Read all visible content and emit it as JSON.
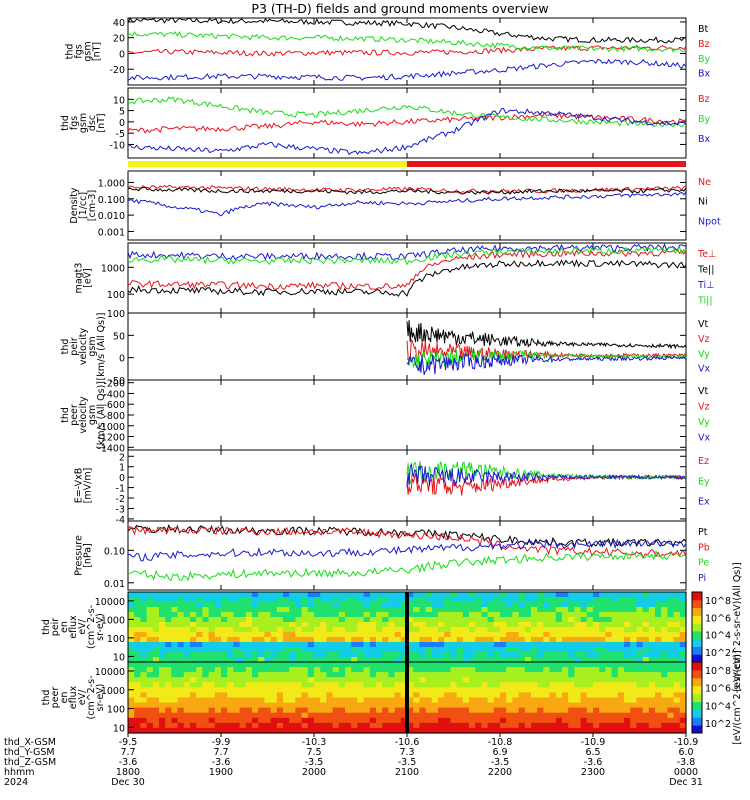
{
  "title": "P3 (TH-D) fields and ground moments overview",
  "colors": {
    "black": "#000000",
    "red": "#e8141c",
    "green": "#18dd18",
    "blue": "#1a1ad0"
  },
  "chart_data": [
    {
      "type": "line",
      "ylabel": [
        "thd",
        "fgs",
        "gsm",
        "[nT]"
      ],
      "yticks": [
        40,
        20,
        0,
        -20
      ],
      "ylim": [
        -40,
        45
      ],
      "x_hours": [
        18.0,
        18.5,
        19.0,
        19.5,
        20.0,
        20.5,
        21.0,
        21.5,
        22.0,
        22.5,
        23.0,
        23.5,
        24.0
      ],
      "legend": [
        "Bt",
        "Bz",
        "By",
        "Bx"
      ],
      "series": [
        {
          "name": "Bt",
          "color": "black",
          "values": [
            42,
            42,
            41,
            41,
            40,
            39,
            38,
            33,
            25,
            19,
            17,
            17,
            17
          ]
        },
        {
          "name": "Bz",
          "color": "red",
          "values": [
            1,
            2,
            1,
            0,
            1,
            1,
            1,
            2,
            4,
            6,
            7,
            7,
            8
          ]
        },
        {
          "name": "By",
          "color": "green",
          "values": [
            25,
            24,
            22,
            20,
            20,
            19,
            17,
            14,
            10,
            7,
            6,
            6,
            5
          ]
        },
        {
          "name": "Bx",
          "color": "blue",
          "values": [
            -31,
            -30,
            -29,
            -29,
            -30,
            -31,
            -29,
            -25,
            -21,
            -15,
            -10,
            -11,
            -16
          ]
        }
      ]
    },
    {
      "type": "line",
      "ylabel": [
        "thd",
        "fgs",
        "gsm",
        "dsc",
        "[nT]"
      ],
      "yticks": [
        10,
        5,
        0,
        -5,
        -10
      ],
      "ylim": [
        -16,
        15
      ],
      "legend": [
        "Bz",
        "By",
        "Bx"
      ],
      "series": [
        {
          "name": "Bz",
          "color": "red",
          "values": [
            -4,
            -3,
            -3,
            -2,
            0,
            -1,
            0,
            1,
            2,
            3,
            2,
            1,
            0
          ]
        },
        {
          "name": "By",
          "color": "green",
          "values": [
            9,
            10,
            7,
            4,
            3,
            5,
            7,
            4,
            2,
            1,
            0,
            -1,
            -1
          ]
        },
        {
          "name": "Bx",
          "color": "blue",
          "values": [
            -11,
            -12,
            -13,
            -10,
            -12,
            -14,
            -11,
            -4,
            5,
            4,
            2,
            0,
            -1
          ]
        }
      ]
    },
    {
      "type": "line",
      "log": true,
      "ylabel": [
        "Density",
        "[1/cc]",
        "[cm-3]"
      ],
      "yticks": [
        "1.000",
        "0.100",
        "0.010",
        "0.001"
      ],
      "ylim": [
        0.0003,
        5
      ],
      "legend": [
        "Ne",
        "Ni",
        "Npot"
      ],
      "series": [
        {
          "name": "Ne",
          "color": "red",
          "values": [
            0.5,
            0.5,
            0.45,
            0.4,
            0.35,
            0.35,
            0.4,
            0.3,
            0.3,
            0.3,
            0.35,
            0.4,
            0.45
          ]
        },
        {
          "name": "Ni",
          "color": "black",
          "values": [
            0.4,
            0.35,
            0.3,
            0.3,
            0.3,
            0.25,
            0.3,
            0.25,
            0.25,
            0.3,
            0.3,
            0.3,
            0.35
          ]
        },
        {
          "name": "Npot",
          "color": "blue",
          "values": [
            0.08,
            0.03,
            0.01,
            0.05,
            0.03,
            0.06,
            0.05,
            0.07,
            0.1,
            0.12,
            0.14,
            0.17,
            0.2
          ]
        }
      ]
    },
    {
      "type": "line",
      "log": true,
      "ylabel": [
        "magt3",
        "[eV]"
      ],
      "yticks": [
        "1000",
        "100"
      ],
      "ylim": [
        20,
        8000
      ],
      "legend": [
        "Te⊥",
        "Te||",
        "Ti⊥",
        "Ti||"
      ],
      "series": [
        {
          "name": "Te⊥",
          "color": "red",
          "values": [
            250,
            230,
            220,
            200,
            210,
            200,
            190,
            2000,
            3000,
            3200,
            3300,
            3400,
            3500
          ]
        },
        {
          "name": "Te||",
          "color": "black",
          "values": [
            150,
            140,
            130,
            120,
            130,
            120,
            110,
            900,
            1300,
            1500,
            1400,
            1300,
            1200
          ]
        },
        {
          "name": "Ti⊥",
          "color": "blue",
          "values": [
            3000,
            2800,
            2600,
            2500,
            2700,
            2600,
            2500,
            4000,
            5000,
            5200,
            5300,
            5400,
            5400
          ]
        },
        {
          "name": "Ti||",
          "color": "green",
          "values": [
            2000,
            1900,
            1800,
            1700,
            1800,
            1800,
            1700,
            3000,
            3800,
            4000,
            4100,
            4200,
            4200
          ]
        }
      ]
    },
    {
      "type": "line",
      "ylabel": [
        "thd",
        "peir",
        "velocity",
        "gsm",
        "[km/s (All Qs)]"
      ],
      "yticks": [
        100,
        50,
        0,
        -50
      ],
      "ylim": [
        -50,
        100
      ],
      "legend": [
        "Vt",
        "Vz",
        "Vy",
        "Vx"
      ],
      "x_start_hours": 21.0,
      "series": [
        {
          "name": "Vt",
          "color": "black",
          "values": [
            60,
            45,
            35,
            30,
            28,
            25
          ]
        },
        {
          "name": "Vz",
          "color": "red",
          "values": [
            15,
            10,
            8,
            5,
            5,
            5
          ]
        },
        {
          "name": "Vy",
          "color": "green",
          "values": [
            -10,
            0,
            5,
            5,
            3,
            2
          ]
        },
        {
          "name": "Vx",
          "color": "blue",
          "values": [
            -20,
            -10,
            -5,
            -3,
            -2,
            0
          ]
        }
      ]
    },
    {
      "type": "line",
      "ylabel": [
        "thd",
        "peer",
        "velocity",
        "gsm",
        "[km/s (All Qs)]"
      ],
      "yticks": [
        -200,
        -400,
        -600,
        -800,
        -1000,
        -1200,
        -1400
      ],
      "ylim": [
        -1450,
        -150
      ],
      "legend": [
        "Vt",
        "Vz",
        "Vy",
        "Vx"
      ],
      "series": []
    },
    {
      "type": "line",
      "ylabel": [
        "E=-VxB",
        "[mV/m]"
      ],
      "yticks": [
        2,
        1,
        0,
        -1,
        -2,
        -3,
        -4
      ],
      "ylim": [
        -4.2,
        2.6
      ],
      "legend": [
        "Ez",
        "Ey",
        "Ex"
      ],
      "x_start_hours": 21.0,
      "series": [
        {
          "name": "Ez",
          "color": "red",
          "values": [
            -0.5,
            -1.0,
            -0.4,
            -0.1,
            0,
            0
          ]
        },
        {
          "name": "Ey",
          "color": "green",
          "values": [
            0.5,
            0.8,
            0.3,
            0.1,
            0,
            0
          ]
        },
        {
          "name": "Ex",
          "color": "blue",
          "values": [
            0.1,
            0,
            0,
            0,
            0,
            0
          ]
        }
      ]
    },
    {
      "type": "line",
      "log": true,
      "ylabel": [
        "Pressure",
        "[nPa]"
      ],
      "yticks": [
        "0.10",
        "0.01"
      ],
      "ylim": [
        0.006,
        0.8
      ],
      "legend": [
        "Pt",
        "Pb",
        "Pe",
        "Pi"
      ],
      "series": [
        {
          "name": "Pt",
          "color": "black",
          "values": [
            0.45,
            0.45,
            0.42,
            0.4,
            0.4,
            0.38,
            0.35,
            0.3,
            0.22,
            0.18,
            0.17,
            0.17,
            0.17
          ]
        },
        {
          "name": "Pb",
          "color": "red",
          "values": [
            0.42,
            0.42,
            0.4,
            0.38,
            0.38,
            0.36,
            0.3,
            0.25,
            0.14,
            0.1,
            0.09,
            0.08,
            0.08
          ]
        },
        {
          "name": "Pe",
          "color": "green",
          "values": [
            0.02,
            0.015,
            0.018,
            0.02,
            0.02,
            0.02,
            0.025,
            0.04,
            0.05,
            0.06,
            0.065,
            0.07,
            0.07
          ]
        },
        {
          "name": "Pi",
          "color": "blue",
          "values": [
            0.06,
            0.07,
            0.08,
            0.09,
            0.08,
            0.09,
            0.1,
            0.12,
            0.14,
            0.15,
            0.16,
            0.16,
            0.17
          ]
        }
      ]
    },
    {
      "type": "heatmap",
      "ylabel": [
        "thd",
        "peir",
        "en",
        "eflux",
        "eV/",
        "(cm^2-s-",
        "sr-eV)"
      ],
      "yticks": [
        "10000",
        "1000",
        "100",
        "10"
      ],
      "colorbar_ticks": [
        "10^8",
        "10^6",
        "10^4",
        "10^2"
      ],
      "colorbar_label": "[eV/(cm^2-s-sr-eV)(All Qs)]"
    },
    {
      "type": "heatmap",
      "ylabel": [
        "thd",
        "peer",
        "en",
        "eflux",
        "eV/",
        "(cm^2-s-",
        "sr-eV)"
      ],
      "yticks": [
        "10000",
        "1000",
        "100",
        "10"
      ],
      "colorbar_ticks": [
        "10^8",
        "10^6",
        "10^4",
        "10^2"
      ],
      "colorbar_label": "[eV/(cm^2-s-sr-eV)]"
    }
  ],
  "time_axis": {
    "row_labels": [
      "thd_X-GSM",
      "thd_Y-GSM",
      "thd_Z-GSM",
      "hhmm",
      "2024"
    ],
    "columns": [
      {
        "x": "-9.5",
        "y": "7.7",
        "z": "-3.6",
        "hhmm": "1800",
        "date": "Dec 30"
      },
      {
        "x": "-9.9",
        "y": "7.7",
        "z": "-3.6",
        "hhmm": "1900",
        "date": ""
      },
      {
        "x": "-10.3",
        "y": "7.5",
        "z": "-3.5",
        "hhmm": "2000",
        "date": ""
      },
      {
        "x": "-10.6",
        "y": "7.3",
        "z": "-3.5",
        "hhmm": "2100",
        "date": ""
      },
      {
        "x": "-10.8",
        "y": "6.9",
        "z": "-3.5",
        "hhmm": "2200",
        "date": ""
      },
      {
        "x": "-10.9",
        "y": "6.5",
        "z": "-3.6",
        "hhmm": "2300",
        "date": ""
      },
      {
        "x": "-10.9",
        "y": "6.0",
        "z": "-3.8",
        "hhmm": "0000",
        "date": "Dec 31"
      }
    ]
  }
}
